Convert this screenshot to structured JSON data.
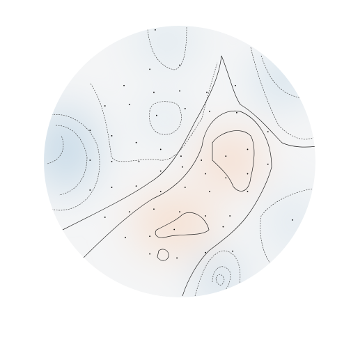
{
  "chart_data": {
    "type": "topomap",
    "xlim": [
      -1,
      1
    ],
    "ylim": [
      -1,
      1
    ],
    "sensor_color": "#000000",
    "x": [
      -0.18,
      0,
      -0.22,
      -0.41,
      -0.19,
      0,
      0.2,
      0.41,
      -0.55,
      -0.37,
      -0.17,
      0.04,
      0.22,
      0.42,
      -0.66,
      -0.5,
      -0.32,
      -0.14,
      0.01,
      0.16,
      0.34,
      0.5,
      0.65,
      -0.66,
      -0.5,
      -0.3,
      -0.14,
      0.02,
      0.19,
      0.34,
      0.5,
      0.65,
      -0.66,
      -0.5,
      -0.32,
      -0.14,
      0.04,
      0.22,
      0.5,
      -0.55,
      -0.37,
      -0.19,
      0,
      0.19,
      0.37,
      0.83,
      -0.4,
      -0.22,
      -0.04,
      0.32,
      -0.22,
      -0.02,
      0.19,
      0.39
    ],
    "y": [
      0.97,
      0.71,
      0.68,
      0.56,
      0.51,
      0.52,
      0.51,
      0.56,
      0.41,
      0.42,
      0.34,
      0.39,
      0.37,
      0.36,
      0.23,
      0.19,
      0.14,
      0.09,
      0.04,
      0.01,
      0.04,
      0.09,
      0.22,
      0.01,
      0,
      0,
      -0.07,
      -0.04,
      -0.09,
      -0.12,
      -0.09,
      -0.02,
      -0.21,
      -0.19,
      -0.18,
      -0.22,
      -0.19,
      -0.22,
      -0.22,
      -0.41,
      -0.37,
      -0.35,
      -0.37,
      -0.4,
      -0.4,
      -0.43,
      -0.56,
      -0.55,
      -0.5,
      -0.48,
      -0.68,
      -0.71,
      -0.67,
      -0.66
    ]
  }
}
